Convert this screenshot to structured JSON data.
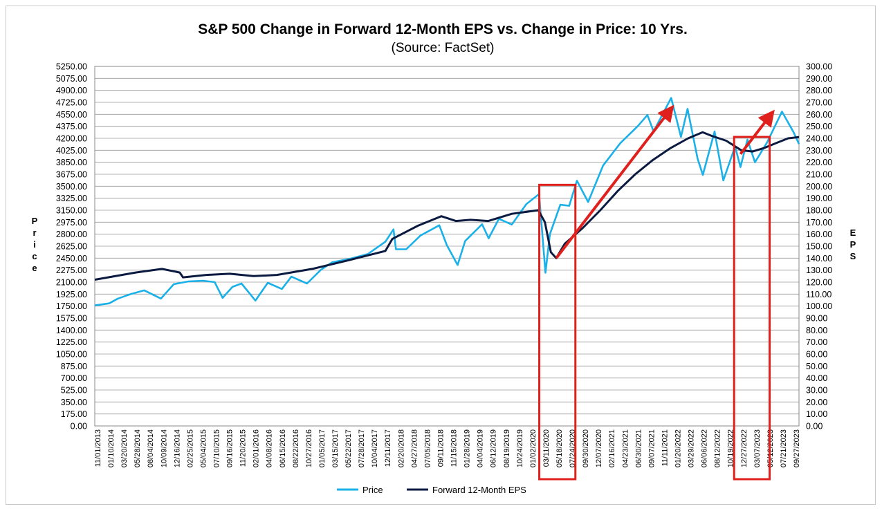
{
  "chart_data": {
    "type": "line",
    "title": "S&P 500 Change in Forward 12-Month EPS vs. Change in Price: 10 Yrs.",
    "subtitle": "(Source: FactSet)",
    "ylabel": "Price",
    "y2label": "EPS",
    "ylim": [
      0,
      5250
    ],
    "y2lim": [
      0,
      300
    ],
    "yticks": [
      "0.00",
      "175.00",
      "350.00",
      "525.00",
      "700.00",
      "875.00",
      "1050.00",
      "1225.00",
      "1400.00",
      "1575.00",
      "1750.00",
      "1925.00",
      "2100.00",
      "2275.00",
      "2450.00",
      "2625.00",
      "2800.00",
      "2975.00",
      "3150.00",
      "3325.00",
      "3500.00",
      "3675.00",
      "3850.00",
      "4025.00",
      "4200.00",
      "4375.00",
      "4550.00",
      "4725.00",
      "4900.00",
      "5075.00",
      "5250.00"
    ],
    "y2ticks": [
      "0.00",
      "10.00",
      "20.00",
      "30.00",
      "40.00",
      "50.00",
      "60.00",
      "70.00",
      "80.00",
      "90.00",
      "100.00",
      "110.00",
      "120.00",
      "130.00",
      "140.00",
      "150.00",
      "160.00",
      "170.00",
      "180.00",
      "190.00",
      "200.00",
      "210.00",
      "220.00",
      "230.00",
      "240.00",
      "250.00",
      "260.00",
      "270.00",
      "280.00",
      "290.00",
      "300.00"
    ],
    "xticks": [
      "11/01/2013",
      "01/10/2014",
      "03/20/2014",
      "05/28/2014",
      "08/04/2014",
      "10/09/2014",
      "12/16/2014",
      "02/25/2015",
      "05/04/2015",
      "07/10/2015",
      "09/16/2015",
      "11/20/2015",
      "02/01/2016",
      "04/08/2016",
      "06/15/2016",
      "08/22/2016",
      "10/27/2016",
      "01/05/2017",
      "03/15/2017",
      "05/22/2017",
      "07/28/2017",
      "10/04/2017",
      "12/11/2017",
      "02/20/2018",
      "04/27/2018",
      "07/05/2018",
      "09/11/2018",
      "11/15/2018",
      "01/28/2019",
      "04/04/2019",
      "06/12/2019",
      "08/19/2019",
      "10/24/2019",
      "01/02/2020",
      "03/11/2020",
      "05/18/2020",
      "07/24/2020",
      "09/30/2020",
      "12/07/2020",
      "02/16/2021",
      "04/23/2021",
      "06/30/2021",
      "09/07/2021",
      "11/11/2021",
      "01/20/2022",
      "03/29/2022",
      "06/06/2022",
      "08/12/2022",
      "10/19/2022",
      "12/27/2022",
      "03/07/2023",
      "05/12/2023",
      "07/21/2023",
      "09/27/2023"
    ],
    "grid": true,
    "legend_position": "bottom",
    "series": [
      {
        "name": "Price",
        "axis": "left",
        "color": "#1ab0e8",
        "x": [
          "2013-11-01",
          "2014-01-15",
          "2014-03-01",
          "2014-05-01",
          "2014-07-15",
          "2014-10-10",
          "2014-12-15",
          "2015-03-01",
          "2015-05-15",
          "2015-07-15",
          "2015-08-25",
          "2015-10-15",
          "2015-12-01",
          "2016-02-11",
          "2016-04-15",
          "2016-06-27",
          "2016-08-15",
          "2016-11-04",
          "2017-01-15",
          "2017-03-15",
          "2017-06-15",
          "2017-09-15",
          "2017-12-15",
          "2018-01-26",
          "2018-02-08",
          "2018-04-02",
          "2018-06-15",
          "2018-09-20",
          "2018-10-29",
          "2018-12-24",
          "2019-02-01",
          "2019-04-30",
          "2019-06-03",
          "2019-07-26",
          "2019-10-01",
          "2019-12-15",
          "2020-02-19",
          "2020-03-23",
          "2020-04-15",
          "2020-06-08",
          "2020-07-24",
          "2020-09-02",
          "2020-10-30",
          "2021-01-15",
          "2021-04-15",
          "2021-07-15",
          "2021-09-02",
          "2021-10-04",
          "2022-01-03",
          "2022-02-23",
          "2022-03-29",
          "2022-05-20",
          "2022-06-16",
          "2022-08-16",
          "2022-09-30",
          "2022-11-30",
          "2022-12-28",
          "2023-02-02",
          "2023-03-13",
          "2023-05-15",
          "2023-07-31",
          "2023-09-29",
          "2023-10-27"
        ],
        "values": [
          1760,
          1790,
          1860,
          1920,
          1980,
          1860,
          2070,
          2110,
          2120,
          2100,
          1870,
          2030,
          2080,
          1830,
          2090,
          2000,
          2180,
          2080,
          2280,
          2390,
          2440,
          2510,
          2690,
          2870,
          2580,
          2580,
          2780,
          2930,
          2640,
          2350,
          2700,
          2945,
          2740,
          3025,
          2940,
          3240,
          3386,
          2237,
          2800,
          3230,
          3215,
          3580,
          3270,
          3800,
          4130,
          4380,
          4540,
          4300,
          4790,
          4220,
          4630,
          3900,
          3666,
          4300,
          3585,
          4080,
          3780,
          4180,
          3850,
          4140,
          4590,
          4288,
          4117
        ]
      },
      {
        "name": "Forward 12-Month EPS",
        "axis": "right",
        "color": "#0b1a40",
        "x": [
          "2013-11-01",
          "2014-06-01",
          "2014-10-15",
          "2015-01-15",
          "2015-02-01",
          "2015-06-01",
          "2015-10-01",
          "2016-02-01",
          "2016-06-01",
          "2016-12-01",
          "2017-06-01",
          "2017-12-15",
          "2018-01-20",
          "2018-06-01",
          "2018-10-01",
          "2018-12-15",
          "2019-03-01",
          "2019-06-01",
          "2019-10-01",
          "2020-02-15",
          "2020-03-20",
          "2020-04-20",
          "2020-05-18",
          "2020-07-01",
          "2020-10-01",
          "2021-01-01",
          "2021-04-01",
          "2021-07-01",
          "2021-10-01",
          "2022-01-01",
          "2022-04-01",
          "2022-06-15",
          "2022-08-01",
          "2022-10-15",
          "2023-01-01",
          "2023-03-01",
          "2023-05-01",
          "2023-07-01",
          "2023-09-01",
          "2023-10-27"
        ],
        "values": [
          122,
          128,
          131,
          128,
          124,
          126,
          127,
          125,
          126,
          131,
          138,
          146,
          156,
          167,
          175,
          171,
          172,
          171,
          177,
          180,
          170,
          145,
          140,
          152,
          165,
          180,
          196,
          210,
          222,
          232,
          240,
          245,
          242,
          238,
          230,
          229,
          232,
          236,
          240,
          241
        ]
      }
    ],
    "annotations": [
      {
        "type": "box",
        "x_from": "2020-02-20",
        "x_to": "2020-08-25",
        "y_from": 0,
        "y_to": 3520,
        "color": "#e0201c"
      },
      {
        "type": "box",
        "x_from": "2022-11-25",
        "x_to": "2023-05-28",
        "y_from": 0,
        "y_to": 4220,
        "color": "#e0201c"
      },
      {
        "type": "arrow",
        "x_from": "2020-05-18",
        "y_from": 2450,
        "x_to": "2022-01-05",
        "y_to": 4640,
        "color": "#e0201c"
      },
      {
        "type": "arrow",
        "x_from": "2022-12-28",
        "y_from": 3970,
        "x_to": "2023-06-10",
        "y_to": 4570,
        "color": "#e0201c"
      }
    ]
  }
}
